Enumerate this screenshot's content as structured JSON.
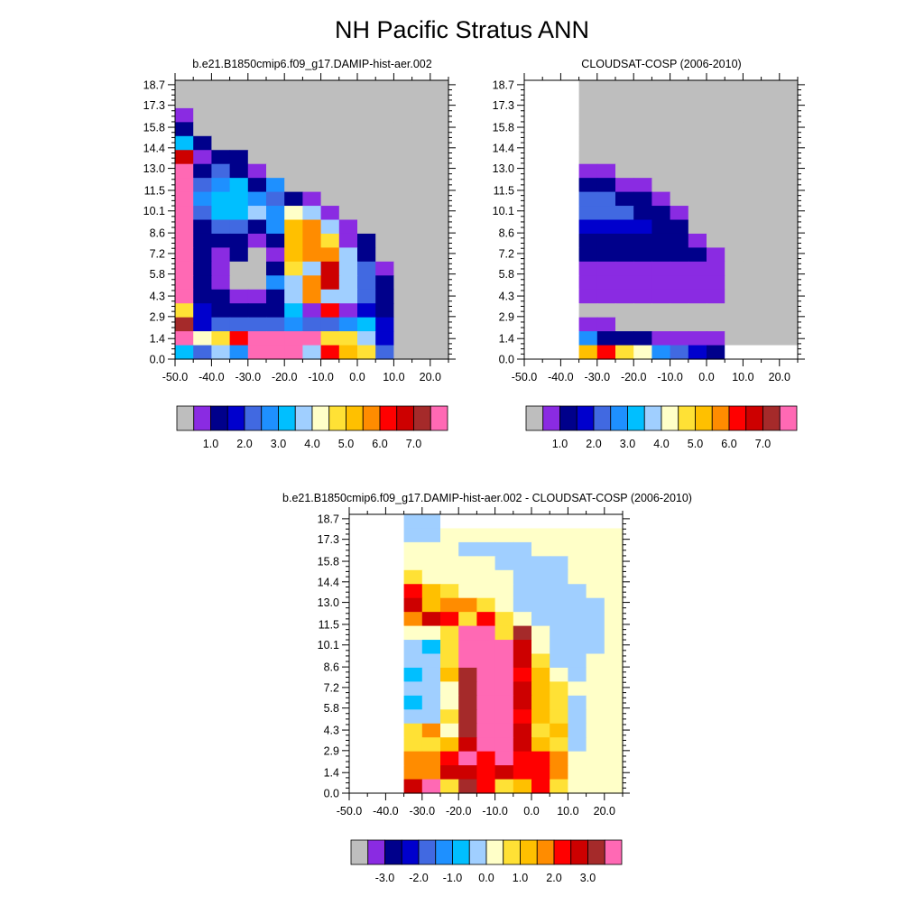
{
  "figure": {
    "title": "NH Pacific Stratus ANN"
  },
  "panels": {
    "model": {
      "title": "b.e21.B1850cmip6.f09_g17.DAMIP-hist-aer.002"
    },
    "obs": {
      "title": "CLOUDSAT-COSP (2006-2010)"
    },
    "diff": {
      "title": "b.e21.B1850cmip6.f09_g17.DAMIP-hist-aer.002 - CLOUDSAT-COSP (2006-2010)"
    }
  },
  "axes": {
    "y_ticks": [
      "0.0",
      "1.4",
      "2.9",
      "4.3",
      "5.8",
      "7.2",
      "8.6",
      "10.1",
      "11.5",
      "13.0",
      "14.4",
      "15.8",
      "17.3",
      "18.7"
    ],
    "x_ticks": [
      "-50.0",
      "-40.0",
      "-30.0",
      "-20.0",
      "-10.0",
      "0.0",
      "10.0",
      "20.0"
    ]
  },
  "colorbars": {
    "abs": {
      "colors": [
        "#bebebe",
        "#8a2be2",
        "#00008b",
        "#0000cd",
        "#4169e1",
        "#1e90ff",
        "#00bfff",
        "#a0cfff",
        "#ffffc8",
        "#ffe135",
        "#ffc000",
        "#ff8c00",
        "#ff0000",
        "#cd0000",
        "#a52a2a",
        "#ff69b4"
      ],
      "labels": [
        "1.0",
        "2.0",
        "3.0",
        "4.0",
        "5.0",
        "6.0",
        "7.0"
      ]
    },
    "diff": {
      "colors": [
        "#bebebe",
        "#8a2be2",
        "#00008b",
        "#0000cd",
        "#4169e1",
        "#1e90ff",
        "#00bfff",
        "#a0cfff",
        "#ffffc8",
        "#ffe135",
        "#ffc000",
        "#ff8c00",
        "#ff0000",
        "#cd0000",
        "#a52a2a",
        "#ff69b4"
      ],
      "labels": [
        "-3.0",
        "-2.0",
        "-1.0",
        "0.0",
        "1.0",
        "2.0",
        "3.0"
      ]
    }
  },
  "chart_data": [
    {
      "type": "heatmap",
      "title": "b.e21.B1850cmip6.f09_g17.DAMIP-hist-aer.002",
      "x": [
        -50.0,
        -40.0,
        -30.0,
        -20.0,
        -10.0,
        0.0,
        10.0,
        20.0
      ],
      "y": [
        0.0,
        1.4,
        2.9,
        4.3,
        5.8,
        7.2,
        8.6,
        10.1,
        11.5,
        13.0,
        14.4,
        15.8,
        17.3,
        18.7
      ],
      "colorbar_labels": [
        "1.0",
        "2.0",
        "3.0",
        "4.0",
        "5.0",
        "6.0",
        "7.0"
      ],
      "xlim": [
        -50.0,
        25.0
      ],
      "ylim": [
        0.0,
        19.0
      ]
    },
    {
      "type": "heatmap",
      "title": "CLOUDSAT-COSP (2006-2010)",
      "x": [
        -50.0,
        -40.0,
        -30.0,
        -20.0,
        -10.0,
        0.0,
        10.0,
        20.0
      ],
      "y": [
        0.0,
        1.4,
        2.9,
        4.3,
        5.8,
        7.2,
        8.6,
        10.1,
        11.5,
        13.0,
        14.4,
        15.8,
        17.3,
        18.7
      ],
      "colorbar_labels": [
        "1.0",
        "2.0",
        "3.0",
        "4.0",
        "5.0",
        "6.0",
        "7.0"
      ],
      "xlim": [
        -50.0,
        25.0
      ],
      "ylim": [
        0.0,
        19.0
      ]
    },
    {
      "type": "heatmap",
      "title": "b.e21.B1850cmip6.f09_g17.DAMIP-hist-aer.002 - CLOUDSAT-COSP (2006-2010)",
      "x": [
        -50.0,
        -40.0,
        -30.0,
        -20.0,
        -10.0,
        0.0,
        10.0,
        20.0
      ],
      "y": [
        0.0,
        1.4,
        2.9,
        4.3,
        5.8,
        7.2,
        8.6,
        10.1,
        11.5,
        13.0,
        14.4,
        15.8,
        17.3,
        18.7
      ],
      "colorbar_labels": [
        "-3.0",
        "-2.0",
        "-1.0",
        "0.0",
        "1.0",
        "2.0",
        "3.0"
      ],
      "xlim": [
        -50.0,
        25.0
      ],
      "ylim": [
        0.0,
        19.0
      ]
    }
  ]
}
